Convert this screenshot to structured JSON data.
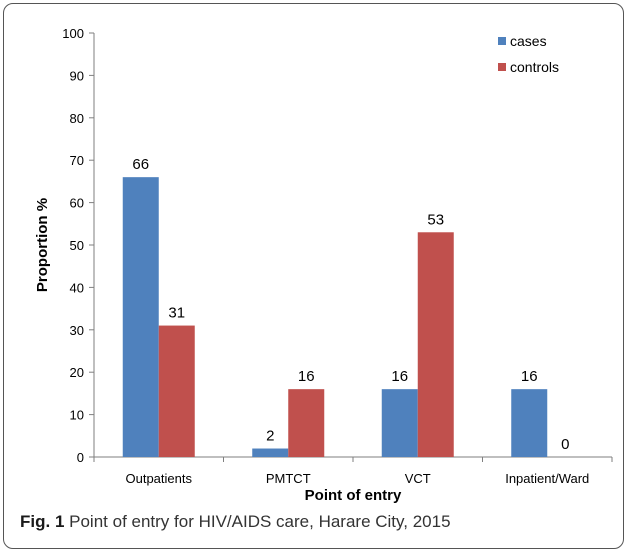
{
  "caption": {
    "prefix": "Fig. 1",
    "text": "Point of entry for HIV/AIDS care, Harare City, 2015"
  },
  "chart_data": {
    "type": "bar",
    "categories": [
      "Outpatients",
      "PMTCT",
      "VCT",
      "Inpatient/Ward"
    ],
    "series": [
      {
        "name": "cases",
        "values": [
          66,
          2,
          16,
          16
        ],
        "color": "#4F81BD"
      },
      {
        "name": "controls",
        "values": [
          31,
          16,
          53,
          0
        ],
        "color": "#C0504D"
      }
    ],
    "xlabel": "Point of entry",
    "ylabel": "Proportion %",
    "ylim": [
      0,
      100
    ],
    "yticks": [
      0,
      10,
      20,
      30,
      40,
      50,
      60,
      70,
      80,
      90,
      100
    ],
    "data_labels": true,
    "grid": false,
    "legend": "top-right"
  }
}
